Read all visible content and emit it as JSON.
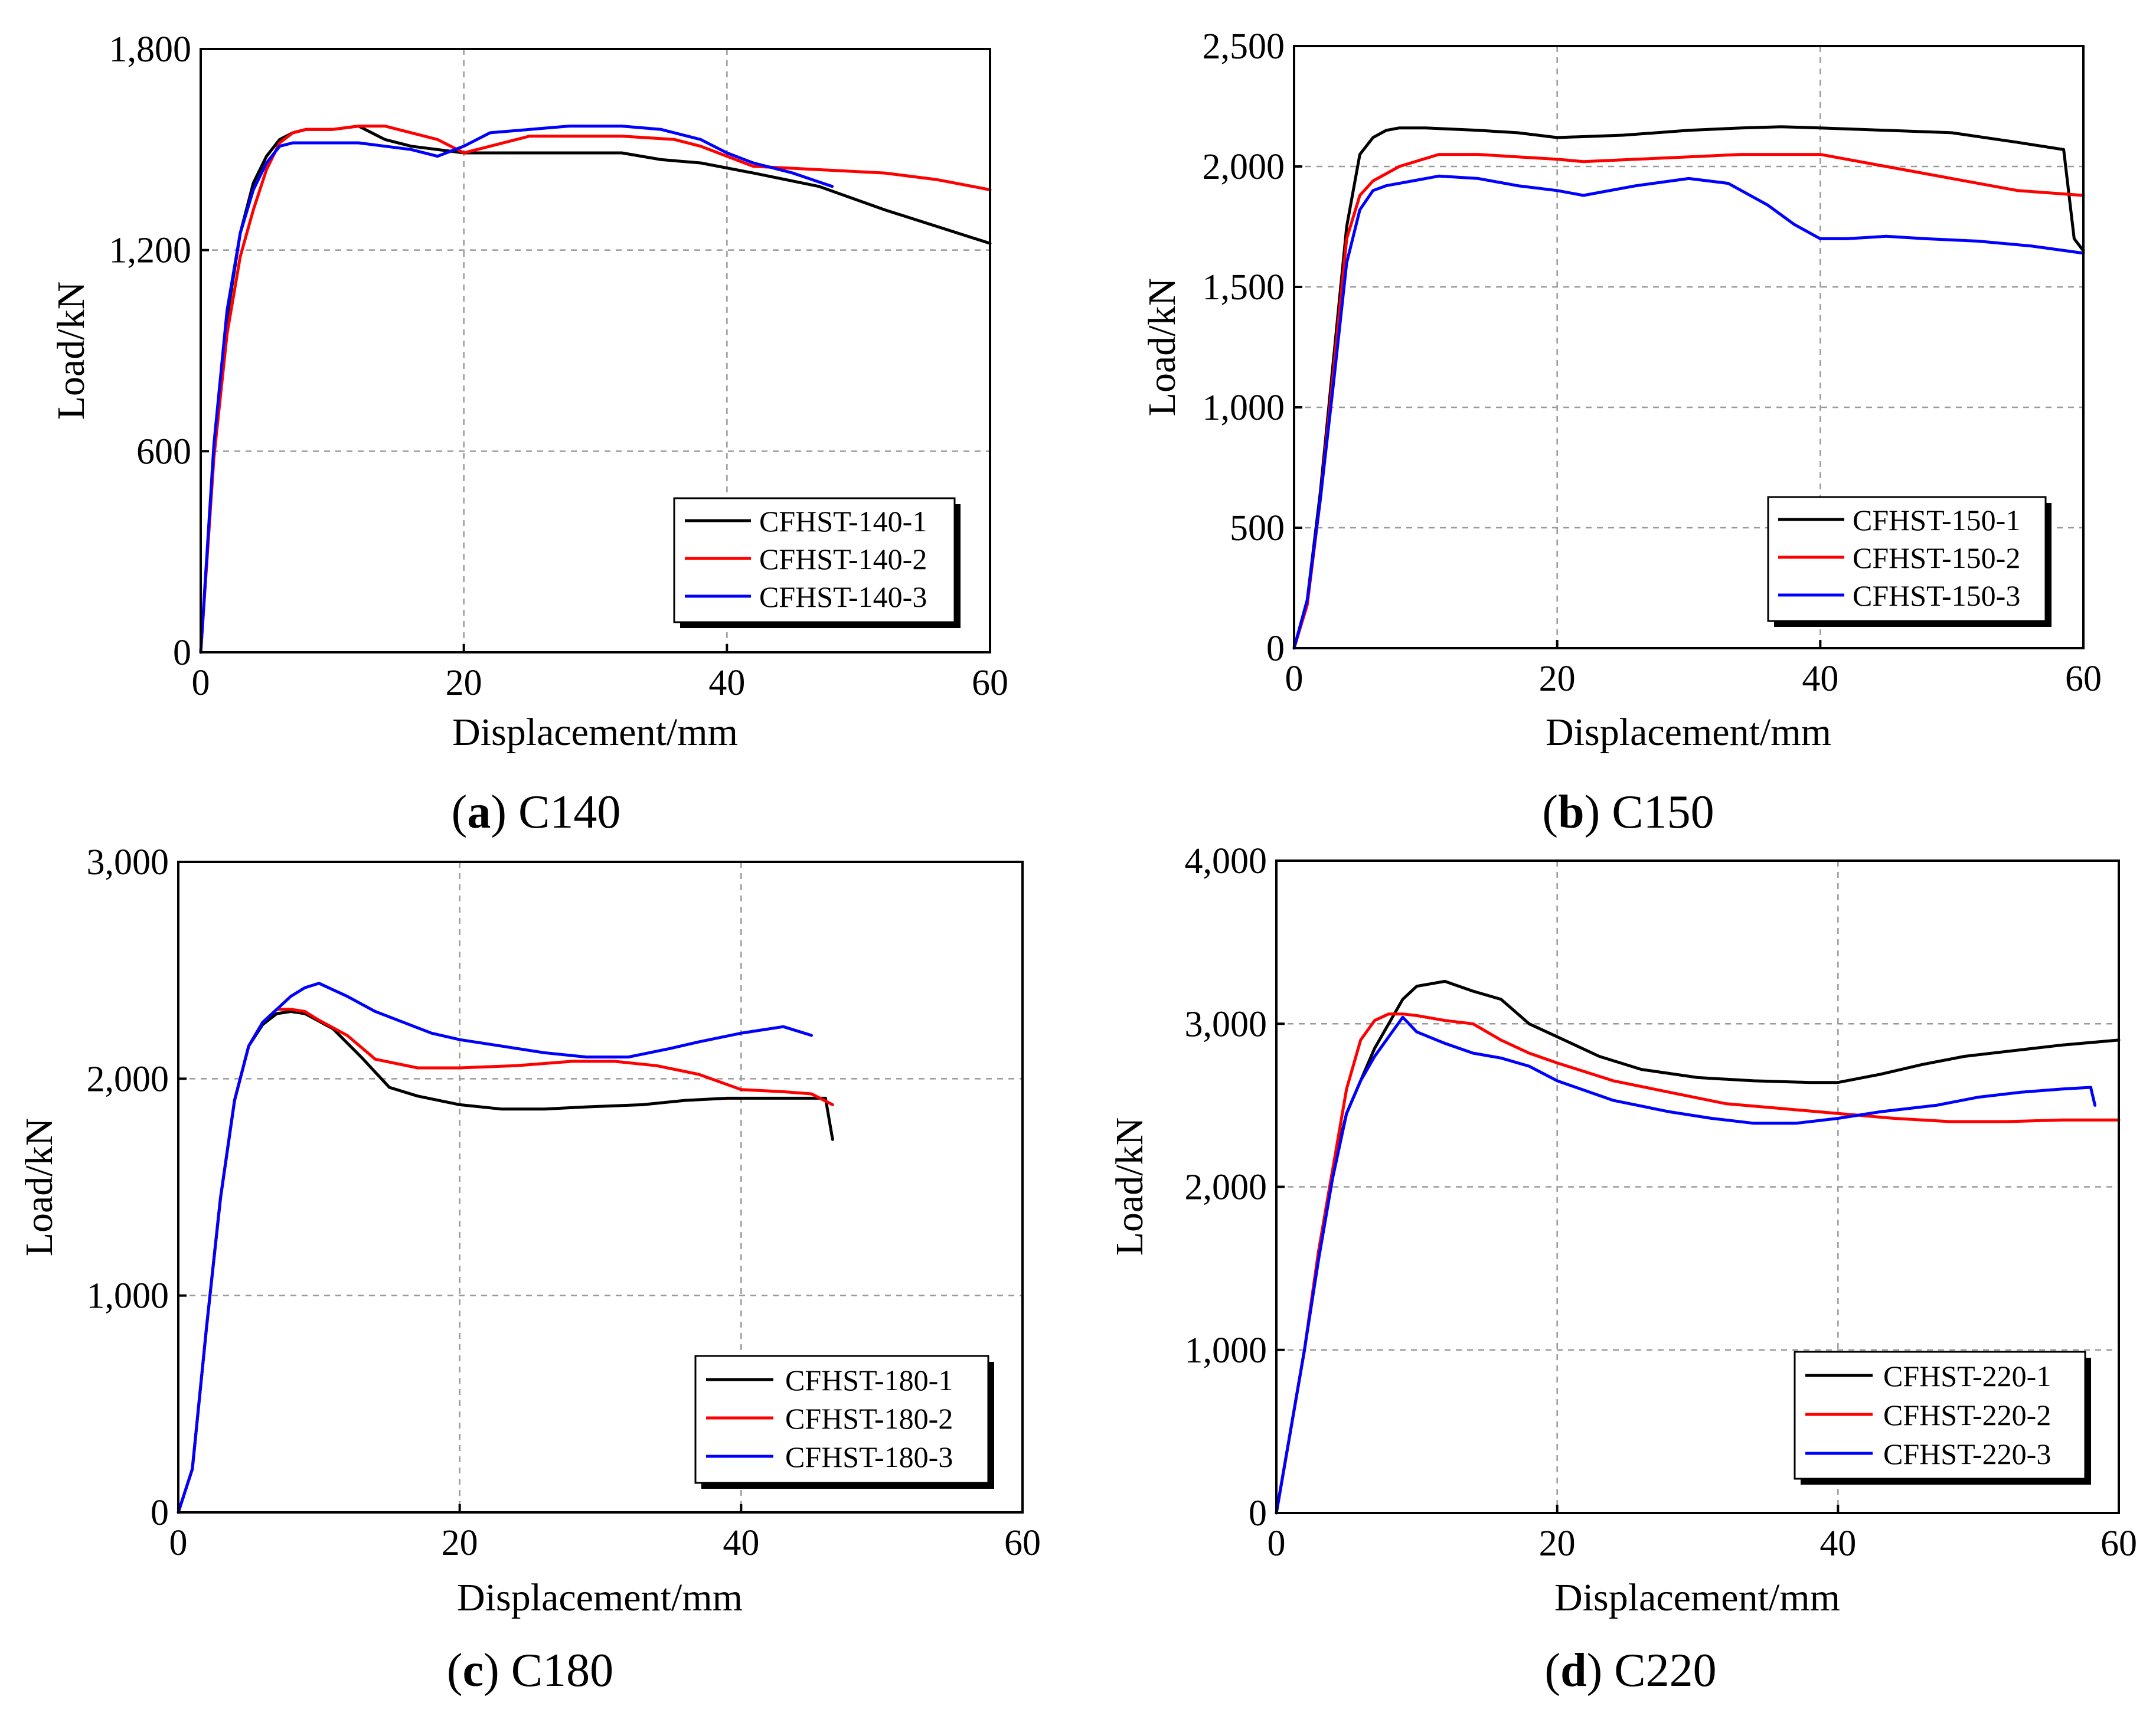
{
  "figure": {
    "panels": [
      {
        "id": "a",
        "caption_letter": "a",
        "caption_text": "C140",
        "series_colors": [
          "#000000",
          "#ff0000",
          "#0000ff"
        ]
      },
      {
        "id": "b",
        "caption_letter": "b",
        "caption_text": "C150",
        "series_colors": [
          "#000000",
          "#ff0000",
          "#0000ff"
        ]
      },
      {
        "id": "c",
        "caption_letter": "c",
        "caption_text": "C180",
        "series_colors": [
          "#000000",
          "#ff0000",
          "#0000ff"
        ]
      },
      {
        "id": "d",
        "caption_letter": "d",
        "caption_text": "C220",
        "series_colors": [
          "#000000",
          "#ff0000",
          "#0000ff"
        ]
      }
    ]
  },
  "chart_data": [
    {
      "type": "line",
      "title": "(a) C140",
      "xlabel": "Displacement/mm",
      "ylabel": "Load/kN",
      "xlim": [
        0,
        60
      ],
      "ylim": [
        0,
        1800
      ],
      "xticks": [
        0,
        20,
        40,
        60
      ],
      "xtick_labels": [
        "0",
        "20",
        "40",
        "60"
      ],
      "yticks": [
        0,
        600,
        1200,
        1800
      ],
      "ytick_labels": [
        "0",
        "600",
        "1,200",
        "1,800"
      ],
      "grid": true,
      "legend_position": "bottom-right",
      "series": [
        {
          "name": "CFHST-140-1",
          "color": "#000000",
          "x": [
            0,
            1,
            2,
            3,
            4,
            5,
            6,
            7,
            8,
            10,
            12,
            14,
            16,
            18,
            20,
            22,
            25,
            28,
            32,
            35,
            38,
            42,
            47,
            52,
            56,
            60
          ],
          "y": [
            0,
            600,
            1000,
            1250,
            1400,
            1480,
            1530,
            1550,
            1560,
            1560,
            1570,
            1530,
            1510,
            1500,
            1490,
            1490,
            1490,
            1490,
            1490,
            1470,
            1460,
            1430,
            1390,
            1320,
            1270,
            1220
          ]
        },
        {
          "name": "CFHST-140-2",
          "color": "#ff0000",
          "x": [
            0,
            1,
            2,
            3,
            4,
            5,
            6,
            7,
            8,
            10,
            12,
            14,
            16,
            18,
            20,
            22,
            25,
            28,
            32,
            36,
            38,
            42,
            47,
            52,
            56,
            60
          ],
          "y": [
            0,
            580,
            950,
            1180,
            1320,
            1440,
            1520,
            1550,
            1560,
            1560,
            1570,
            1570,
            1550,
            1530,
            1490,
            1510,
            1540,
            1540,
            1540,
            1530,
            1510,
            1450,
            1440,
            1430,
            1410,
            1380
          ]
        },
        {
          "name": "CFHST-140-3",
          "color": "#0000ff",
          "x": [
            0,
            1,
            2,
            3,
            4,
            5,
            6,
            7,
            8,
            10,
            12,
            14,
            16,
            18,
            20,
            22,
            25,
            28,
            32,
            35,
            38,
            40,
            42,
            45,
            48
          ],
          "y": [
            0,
            620,
            1020,
            1250,
            1380,
            1460,
            1510,
            1520,
            1520,
            1520,
            1520,
            1510,
            1500,
            1480,
            1510,
            1550,
            1560,
            1570,
            1570,
            1560,
            1530,
            1490,
            1460,
            1430,
            1390
          ]
        }
      ]
    },
    {
      "type": "line",
      "title": "(b) C150",
      "xlabel": "Displacement/mm",
      "ylabel": "Load/kN",
      "xlim": [
        0,
        60
      ],
      "ylim": [
        0,
        2500
      ],
      "xticks": [
        0,
        20,
        40,
        60
      ],
      "xtick_labels": [
        "0",
        "20",
        "40",
        "60"
      ],
      "yticks": [
        0,
        500,
        1000,
        1500,
        2000,
        2500
      ],
      "ytick_labels": [
        "0",
        "500",
        "1,000",
        "1,500",
        "2,000",
        "2,500"
      ],
      "grid": true,
      "legend_position": "bottom-right",
      "series": [
        {
          "name": "CFHST-150-1",
          "color": "#000000",
          "x": [
            0,
            1,
            2,
            3,
            4,
            5,
            6,
            7,
            8,
            10,
            14,
            17,
            20,
            25,
            30,
            34,
            37,
            40,
            45,
            50,
            55,
            58.5,
            59.3,
            60
          ],
          "y": [
            0,
            200,
            650,
            1200,
            1750,
            2050,
            2120,
            2150,
            2160,
            2160,
            2150,
            2140,
            2120,
            2130,
            2150,
            2160,
            2165,
            2160,
            2150,
            2140,
            2100,
            2070,
            1700,
            1650
          ]
        },
        {
          "name": "CFHST-150-2",
          "color": "#ff0000",
          "x": [
            0,
            1,
            2,
            3,
            4,
            5,
            6,
            8,
            11,
            14,
            17,
            20,
            22,
            26,
            30,
            34,
            37,
            40,
            45,
            50,
            55,
            60
          ],
          "y": [
            0,
            180,
            620,
            1150,
            1700,
            1880,
            1940,
            2000,
            2050,
            2050,
            2040,
            2030,
            2020,
            2030,
            2040,
            2050,
            2050,
            2050,
            2000,
            1950,
            1900,
            1880
          ]
        },
        {
          "name": "CFHST-150-3",
          "color": "#0000ff",
          "x": [
            0,
            1,
            2,
            3,
            4,
            5,
            6,
            7,
            8,
            9,
            11,
            14,
            17,
            20,
            22,
            26,
            30,
            33,
            36,
            38,
            40,
            42,
            45,
            48,
            52,
            56,
            60
          ],
          "y": [
            0,
            200,
            620,
            1100,
            1600,
            1820,
            1900,
            1920,
            1930,
            1940,
            1960,
            1950,
            1920,
            1900,
            1880,
            1920,
            1950,
            1930,
            1840,
            1760,
            1700,
            1700,
            1710,
            1700,
            1690,
            1670,
            1640
          ]
        }
      ]
    },
    {
      "type": "line",
      "title": "(c) C180",
      "xlabel": "Displacement/mm",
      "ylabel": "Load/kN",
      "xlim": [
        0,
        60
      ],
      "ylim": [
        0,
        3000
      ],
      "xticks": [
        0,
        20,
        40,
        60
      ],
      "xtick_labels": [
        "0",
        "20",
        "40",
        "60"
      ],
      "yticks": [
        0,
        1000,
        2000,
        3000
      ],
      "ytick_labels": [
        "0",
        "1,000",
        "2,000",
        "3,000"
      ],
      "grid": true,
      "legend_position": "bottom-right",
      "series": [
        {
          "name": "CFHST-180-1",
          "color": "#000000",
          "x": [
            0,
            1,
            2,
            3,
            4,
            5,
            6,
            7,
            8,
            9,
            11,
            13,
            15,
            17,
            20,
            23,
            26,
            29,
            33,
            36,
            39,
            42,
            45,
            46,
            46.5
          ],
          "y": [
            0,
            200,
            850,
            1450,
            1900,
            2150,
            2250,
            2300,
            2310,
            2300,
            2230,
            2100,
            1960,
            1920,
            1880,
            1860,
            1860,
            1870,
            1880,
            1900,
            1910,
            1910,
            1910,
            1910,
            1720
          ]
        },
        {
          "name": "CFHST-180-2",
          "color": "#ff0000",
          "x": [
            0,
            1,
            2,
            3,
            4,
            5,
            6,
            7,
            8,
            9,
            10,
            12,
            14,
            17,
            20,
            24,
            28,
            31,
            34,
            37,
            40,
            43,
            45,
            46.5
          ],
          "y": [
            0,
            200,
            850,
            1450,
            1900,
            2150,
            2260,
            2320,
            2320,
            2310,
            2270,
            2200,
            2090,
            2050,
            2050,
            2060,
            2080,
            2080,
            2060,
            2020,
            1950,
            1940,
            1930,
            1880
          ]
        },
        {
          "name": "CFHST-180-3",
          "color": "#0000ff",
          "x": [
            0,
            1,
            2,
            3,
            4,
            5,
            6,
            7,
            8,
            9,
            10,
            12,
            14,
            16,
            18,
            20,
            23,
            26,
            29,
            32,
            35,
            37,
            40,
            43,
            45
          ],
          "y": [
            0,
            200,
            850,
            1450,
            1900,
            2150,
            2260,
            2320,
            2380,
            2420,
            2440,
            2380,
            2310,
            2260,
            2210,
            2180,
            2150,
            2120,
            2100,
            2100,
            2140,
            2170,
            2210,
            2240,
            2200
          ]
        }
      ]
    },
    {
      "type": "line",
      "title": "(d) C220",
      "xlabel": "Displacement/mm",
      "ylabel": "Load/kN",
      "xlim": [
        0,
        60
      ],
      "ylim": [
        0,
        4000
      ],
      "xticks": [
        0,
        20,
        40,
        60
      ],
      "xtick_labels": [
        "0",
        "20",
        "40",
        "60"
      ],
      "yticks": [
        0,
        1000,
        2000,
        3000,
        4000
      ],
      "ytick_labels": [
        "0",
        "1,000",
        "2,000",
        "3,000",
        "4,000"
      ],
      "grid": true,
      "legend_position": "bottom-right",
      "series": [
        {
          "name": "CFHST-220-1",
          "color": "#000000",
          "x": [
            0,
            1,
            2,
            3,
            4,
            5,
            6,
            7,
            8,
            9,
            10,
            12,
            14,
            16,
            18,
            20,
            23,
            26,
            30,
            34,
            38,
            40,
            43,
            46,
            49,
            52,
            56,
            60
          ],
          "y": [
            0,
            500,
            1000,
            1600,
            2100,
            2450,
            2650,
            2850,
            3000,
            3150,
            3230,
            3260,
            3200,
            3150,
            3000,
            2920,
            2800,
            2720,
            2670,
            2650,
            2640,
            2640,
            2690,
            2750,
            2800,
            2830,
            2870,
            2900
          ]
        },
        {
          "name": "CFHST-220-2",
          "color": "#ff0000",
          "x": [
            0,
            1,
            2,
            3,
            4,
            5,
            6,
            7,
            8,
            9,
            10,
            12,
            14,
            16,
            18,
            20,
            24,
            28,
            32,
            36,
            40,
            44,
            48,
            52,
            56,
            60
          ],
          "y": [
            0,
            500,
            1000,
            1600,
            2100,
            2600,
            2900,
            3020,
            3060,
            3060,
            3050,
            3020,
            3000,
            2900,
            2820,
            2760,
            2650,
            2580,
            2510,
            2480,
            2450,
            2420,
            2400,
            2400,
            2410,
            2410
          ]
        },
        {
          "name": "CFHST-220-3",
          "color": "#0000ff",
          "x": [
            0,
            1,
            2,
            3,
            4,
            5,
            6,
            7,
            8,
            9,
            10,
            12,
            14,
            16,
            18,
            20,
            24,
            28,
            31,
            34,
            37,
            40,
            43,
            47,
            50,
            53,
            56,
            58,
            58.3
          ],
          "y": [
            0,
            500,
            1000,
            1550,
            2050,
            2450,
            2650,
            2800,
            2920,
            3040,
            2950,
            2880,
            2820,
            2790,
            2740,
            2650,
            2530,
            2460,
            2420,
            2390,
            2390,
            2420,
            2460,
            2500,
            2550,
            2580,
            2600,
            2610,
            2500
          ]
        }
      ]
    }
  ]
}
